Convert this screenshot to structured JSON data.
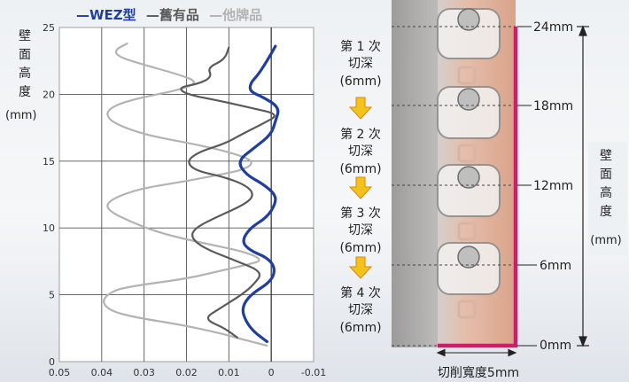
{
  "chart_data": {
    "type": "line",
    "legend": [
      "WEZ型",
      "舊有品",
      "他牌品"
    ],
    "legend_dash": "—",
    "colors": {
      "WEZ型": "#1f3e9e",
      "舊有品": "#5a5a5a",
      "他牌品": "#b3b3b3"
    },
    "ylabel": [
      "壁",
      "面",
      "高",
      "度"
    ],
    "yunit": "(mm)",
    "ylim": [
      0,
      25
    ],
    "yticks": [
      "0",
      "5",
      "10",
      "15",
      "20",
      "25"
    ],
    "xlim": [
      0.05,
      -0.01
    ],
    "xticks": [
      "0.05",
      "0.04",
      "0.03",
      "0.02",
      "0.01",
      "0",
      "-0.01"
    ],
    "grid": true,
    "series": [
      {
        "name": "WEZ型",
        "points": [
          [
            0.001,
            1.5
          ],
          [
            0.004,
            2.2
          ],
          [
            0.006,
            3.0
          ],
          [
            0.007,
            4.0
          ],
          [
            0.005,
            5.0
          ],
          [
            0.0,
            6.0
          ],
          [
            -0.001,
            7.0
          ],
          [
            0.001,
            7.8
          ],
          [
            0.005,
            8.3
          ],
          [
            0.007,
            9.0
          ],
          [
            0.005,
            10.0
          ],
          [
            0.001,
            10.8
          ],
          [
            -0.001,
            11.8
          ],
          [
            -0.001,
            12.5
          ],
          [
            0.002,
            13.3
          ],
          [
            0.006,
            14.0
          ],
          [
            0.008,
            15.0
          ],
          [
            0.004,
            16.0
          ],
          [
            0.0,
            17.0
          ],
          [
            -0.001,
            18.0
          ],
          [
            -0.002,
            19.0
          ],
          [
            0.002,
            19.8
          ],
          [
            0.005,
            20.2
          ],
          [
            0.005,
            20.8
          ],
          [
            0.003,
            21.5
          ],
          [
            0.001,
            22.5
          ],
          [
            -0.001,
            23.6
          ]
        ]
      },
      {
        "name": "舊有品",
        "points": [
          [
            0.008,
            1.8
          ],
          [
            0.011,
            2.5
          ],
          [
            0.016,
            3.2
          ],
          [
            0.012,
            4.0
          ],
          [
            0.007,
            5.0
          ],
          [
            0.004,
            5.8
          ],
          [
            0.002,
            6.7
          ],
          [
            0.008,
            7.5
          ],
          [
            0.016,
            8.5
          ],
          [
            0.019,
            9.3
          ],
          [
            0.018,
            10.0
          ],
          [
            0.013,
            10.8
          ],
          [
            0.006,
            11.8
          ],
          [
            0.004,
            12.5
          ],
          [
            0.006,
            13.2
          ],
          [
            0.011,
            13.8
          ],
          [
            0.018,
            14.3
          ],
          [
            0.02,
            15.0
          ],
          [
            0.017,
            15.7
          ],
          [
            0.011,
            16.3
          ],
          [
            0.007,
            17.0
          ],
          [
            0.002,
            17.8
          ],
          [
            -0.002,
            18.5
          ],
          [
            0.005,
            19.0
          ],
          [
            0.012,
            19.5
          ],
          [
            0.02,
            20.0
          ],
          [
            0.022,
            20.5
          ],
          [
            0.017,
            20.8
          ],
          [
            0.014,
            21.3
          ],
          [
            0.015,
            22.0
          ],
          [
            0.011,
            22.6
          ],
          [
            0.01,
            23.5
          ]
        ]
      },
      {
        "name": "他牌品",
        "points": [
          [
            0.001,
            1.2
          ],
          [
            0.006,
            1.6
          ],
          [
            0.013,
            2.2
          ],
          [
            0.022,
            2.8
          ],
          [
            0.032,
            3.3
          ],
          [
            0.038,
            3.8
          ],
          [
            0.04,
            4.5
          ],
          [
            0.038,
            5.2
          ],
          [
            0.034,
            5.6
          ],
          [
            0.02,
            6.2
          ],
          [
            0.012,
            6.8
          ],
          [
            0.005,
            7.3
          ],
          [
            0.002,
            7.6
          ],
          [
            0.006,
            8.2
          ],
          [
            0.015,
            8.8
          ],
          [
            0.025,
            9.5
          ],
          [
            0.032,
            10.3
          ],
          [
            0.038,
            11.2
          ],
          [
            0.039,
            11.8
          ],
          [
            0.036,
            12.4
          ],
          [
            0.03,
            13.0
          ],
          [
            0.02,
            13.5
          ],
          [
            0.012,
            14.0
          ],
          [
            0.006,
            14.4
          ],
          [
            0.004,
            15.0
          ],
          [
            0.009,
            15.6
          ],
          [
            0.017,
            16.2
          ],
          [
            0.027,
            16.8
          ],
          [
            0.033,
            17.3
          ],
          [
            0.038,
            18.0
          ],
          [
            0.039,
            18.7
          ],
          [
            0.036,
            19.3
          ],
          [
            0.03,
            19.8
          ],
          [
            0.022,
            20.3
          ],
          [
            0.017,
            20.9
          ],
          [
            0.022,
            21.5
          ],
          [
            0.03,
            22.2
          ],
          [
            0.036,
            22.8
          ],
          [
            0.037,
            23.3
          ],
          [
            0.034,
            23.8
          ]
        ]
      }
    ]
  },
  "diagram": {
    "steps": [
      {
        "l1": "第 1 次",
        "l2": "切深",
        "l3": "(6mm)"
      },
      {
        "l1": "第 2 次",
        "l2": "切深",
        "l3": "(6mm)"
      },
      {
        "l1": "第 3 次",
        "l2": "切深",
        "l3": "(6mm)"
      },
      {
        "l1": "第 4 次",
        "l2": "切深",
        "l3": "(6mm)"
      }
    ],
    "levels": [
      "24mm",
      "18mm",
      "12mm",
      "6mm",
      "0mm"
    ],
    "side_label": [
      "壁",
      "面",
      "高",
      "度"
    ],
    "side_unit": "(mm)",
    "bottom_label": "切削寬度5mm",
    "colors": {
      "wall": "#cc1f6b",
      "arrow": "#f3c21b",
      "arrow_edge": "#d48a0c"
    }
  }
}
